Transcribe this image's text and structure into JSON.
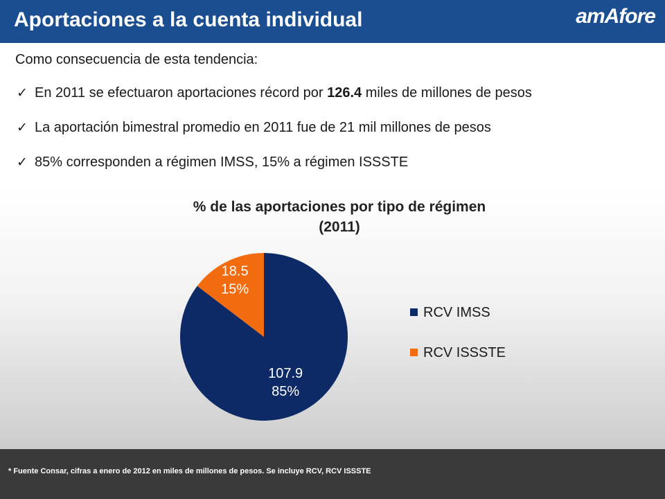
{
  "header": {
    "title": "Aportaciones a la cuenta individual",
    "logo": "amAfore"
  },
  "intro": "Como consecuencia de esta tendencia:",
  "bullets": [
    {
      "before": "En 2011 se efectuaron aportaciones récord por ",
      "bold": "126.4",
      "after": " miles de millones de pesos"
    },
    {
      "text": "La aportación bimestral promedio en  2011 fue de 21 mil millones de pesos"
    },
    {
      "text": "85% corresponden a régimen IMSS, 15% a régimen ISSSTE"
    }
  ],
  "chart_data": {
    "type": "pie",
    "title": "% de las aportaciones por tipo de régimen",
    "subtitle": "(2011)",
    "slices": [
      {
        "name": "RCV IMSS",
        "value": 107.9,
        "percent_label": "85%",
        "color": "#0d2a66"
      },
      {
        "name": "RCV ISSSTE",
        "value": 18.5,
        "percent_label": "15%",
        "color": "#f26b0f"
      }
    ],
    "legend": "right"
  },
  "footer": {
    "note": "* Fuente Consar, cifras a enero de 2012 en miles de millones de pesos. Se incluye RCV, RCV ISSSTE"
  }
}
